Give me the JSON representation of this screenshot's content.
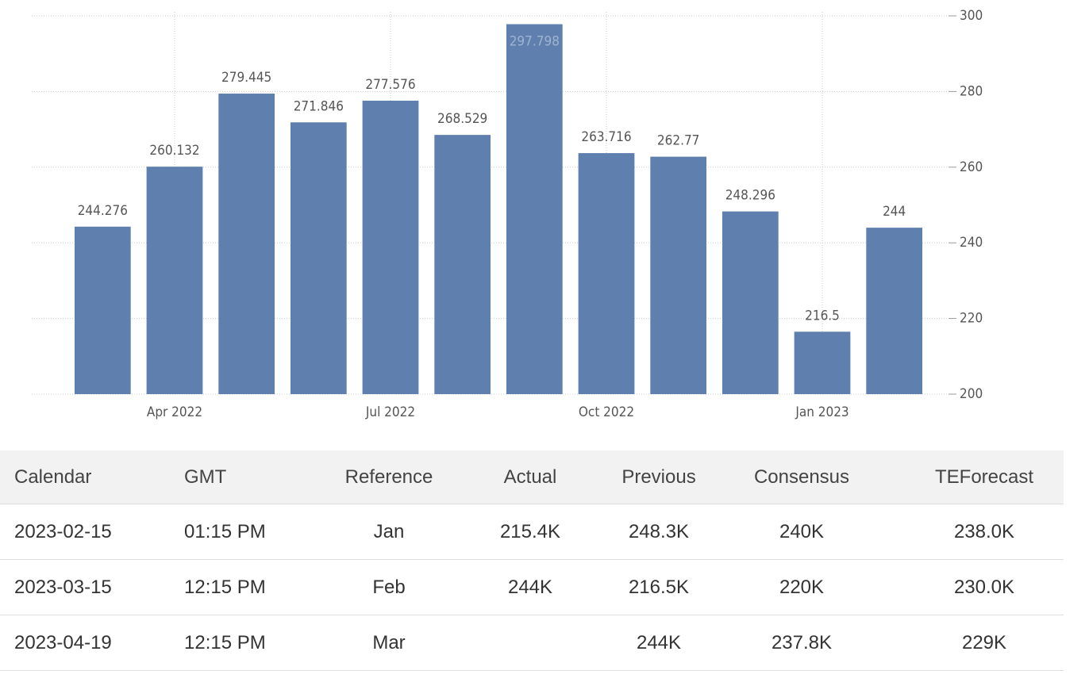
{
  "chart_data": {
    "type": "bar",
    "categories": [
      null,
      "Apr 2022",
      null,
      null,
      "Jul 2022",
      null,
      null,
      "Oct 2022",
      null,
      null,
      "Jan 2023",
      null
    ],
    "values": [
      244.276,
      260.132,
      279.445,
      271.846,
      277.576,
      268.529,
      297.798,
      263.716,
      262.77,
      248.296,
      216.5,
      244
    ],
    "color": "#5f80ae",
    "ylim": [
      200,
      300
    ],
    "yticks": [
      200,
      220,
      240,
      260,
      280,
      300
    ],
    "grid": true
  },
  "table": {
    "header": [
      "Calendar",
      "GMT",
      "Reference",
      "Actual",
      "Previous",
      "Consensus",
      "TEForecast"
    ],
    "rows": [
      [
        "2023-02-15",
        "01:15 PM",
        "Jan",
        "215.4K",
        "248.3K",
        "240K",
        "238.0K"
      ],
      [
        "2023-03-15",
        "12:15 PM",
        "Feb",
        "244K",
        "216.5K",
        "220K",
        "230.0K"
      ],
      [
        "2023-04-19",
        "12:15 PM",
        "Mar",
        null,
        "244K",
        "237.8K",
        "229K"
      ]
    ]
  }
}
